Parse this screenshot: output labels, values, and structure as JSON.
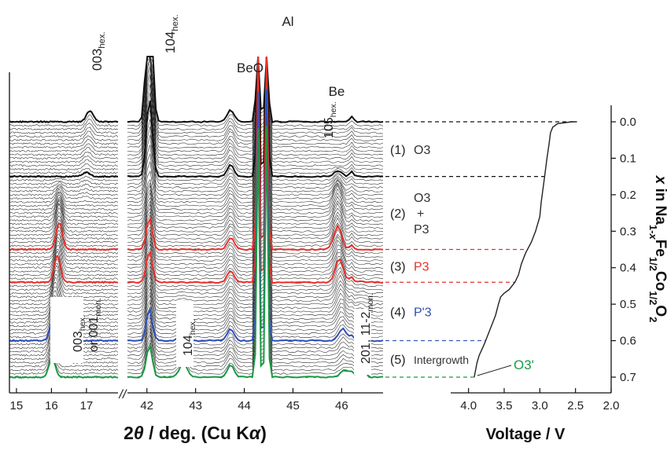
{
  "chart_data": [
    {
      "type": "line",
      "panel": "xrd-stacked-patterns",
      "xlabel_main": "2",
      "xlabel_theta": "θ",
      "xlabel_rest": " / deg. (Cu K",
      "xlabel_alpha": "α",
      "xlabel_close": ")",
      "axis_break": "//",
      "segments": [
        {
          "xlim": [
            14.8,
            17.9
          ],
          "ticks": [
            15,
            16,
            17
          ],
          "tick_labels": [
            "15",
            "16",
            "17"
          ]
        },
        {
          "xlim": [
            41.6,
            46.85
          ],
          "ticks": [
            42,
            43,
            44,
            45,
            46
          ],
          "tick_labels": [
            "42",
            "43",
            "44",
            "45",
            "46"
          ]
        }
      ],
      "peaks": [
        {
          "label": "003",
          "sub": "hex.",
          "x": 17.1
        },
        {
          "label": "104",
          "sub": "hex.",
          "x": 42.05
        },
        {
          "label": "BeO",
          "sub": "",
          "x": 43.7
        },
        {
          "label": "Al",
          "sub": "",
          "x": 44.4
        },
        {
          "label": "Be",
          "sub": "",
          "x": 46.2
        },
        {
          "label": "105",
          "sub": "hex.",
          "x": 45.9
        },
        {
          "label": "003",
          "sub": "hex.",
          "line2": "or 001",
          "line2_sub": "mon.",
          "x": 16.05
        },
        {
          "label": "104",
          "sub": "hex.",
          "x": 42.75
        },
        {
          "label": "201, 11-2",
          "sub": "mon.",
          "x": 46.45
        }
      ],
      "highlight_series": [
        {
          "name": "O3 start",
          "color": "#111111",
          "x_in_Na": 0.0
        },
        {
          "name": "O3 end",
          "color": "#111111",
          "x_in_Na": 0.15
        },
        {
          "name": "P3 start",
          "color": "#e8302b",
          "x_in_Na": 0.35
        },
        {
          "name": "P3 end",
          "color": "#e8302b",
          "x_in_Na": 0.44
        },
        {
          "name": "P'3 end",
          "color": "#2f4fb8",
          "x_in_Na": 0.6
        },
        {
          "name": "O3'",
          "color": "#1a9a45",
          "x_in_Na": 0.7
        }
      ],
      "regions": [
        {
          "num": "(1)",
          "lines": [
            "O3"
          ],
          "color": "#333333",
          "x_from": 0.0,
          "x_to": 0.15
        },
        {
          "num": "(2)",
          "lines": [
            "O3",
            "+",
            "P3"
          ],
          "color": "#333333",
          "x_from": 0.15,
          "x_to": 0.35
        },
        {
          "num": "(3)",
          "lines": [
            "P3"
          ],
          "color": "#e8302b",
          "x_from": 0.35,
          "x_to": 0.44
        },
        {
          "num": "(4)",
          "lines": [
            "P'3"
          ],
          "color": "#2f4fb8",
          "x_from": 0.44,
          "x_to": 0.6
        },
        {
          "num": "(5)",
          "lines": [
            "Intergrowth"
          ],
          "color": "#333333",
          "x_from": 0.6,
          "x_to": 0.7
        }
      ],
      "phase_end_label": {
        "text": "O3'",
        "color": "#1a9a45"
      }
    },
    {
      "type": "line",
      "panel": "voltage-profile",
      "xlabel": "Voltage / V",
      "xlim": [
        4.25,
        2.0
      ],
      "xticks": [
        4.0,
        3.5,
        3.0,
        2.5,
        2.0
      ],
      "xtick_labels": [
        "4.0",
        "3.5",
        "3.0",
        "2.5",
        "2.0"
      ],
      "ylim": [
        0.0,
        0.74
      ],
      "yticks": [
        0.0,
        0.1,
        0.2,
        0.3,
        0.4,
        0.5,
        0.6,
        0.7
      ],
      "ytick_labels": [
        "0.0",
        "0.1",
        "0.2",
        "0.3",
        "0.4",
        "0.5",
        "0.6",
        "0.7"
      ],
      "ylabel_parts": [
        {
          "t": "x",
          "style": "italic"
        },
        {
          "t": " in Na",
          "style": "normal"
        },
        {
          "t": "1-",
          "style": "sub"
        },
        {
          "t": "x",
          "style": "subitalic"
        },
        {
          "t": "Fe",
          "style": "normal"
        },
        {
          "t": "1/2",
          "style": "sub"
        },
        {
          "t": "Co",
          "style": "normal"
        },
        {
          "t": "1/2",
          "style": "sub"
        },
        {
          "t": "O",
          "style": "normal"
        },
        {
          "t": "2",
          "style": "sub"
        }
      ],
      "series": [
        {
          "voltage": [
            2.48,
            2.55,
            2.75,
            2.82,
            2.85,
            2.87,
            2.9,
            2.94,
            2.98,
            3.0,
            3.03,
            3.06,
            3.12,
            3.2,
            3.26,
            3.3,
            3.35,
            3.43,
            3.5,
            3.55,
            3.58,
            3.62,
            3.7,
            3.78,
            3.85,
            3.88,
            3.9,
            3.92
          ],
          "x": [
            0.0,
            0.0,
            0.005,
            0.015,
            0.03,
            0.06,
            0.1,
            0.16,
            0.22,
            0.26,
            0.28,
            0.3,
            0.33,
            0.36,
            0.39,
            0.42,
            0.44,
            0.46,
            0.47,
            0.48,
            0.5,
            0.53,
            0.57,
            0.61,
            0.64,
            0.66,
            0.68,
            0.7
          ]
        }
      ]
    }
  ]
}
